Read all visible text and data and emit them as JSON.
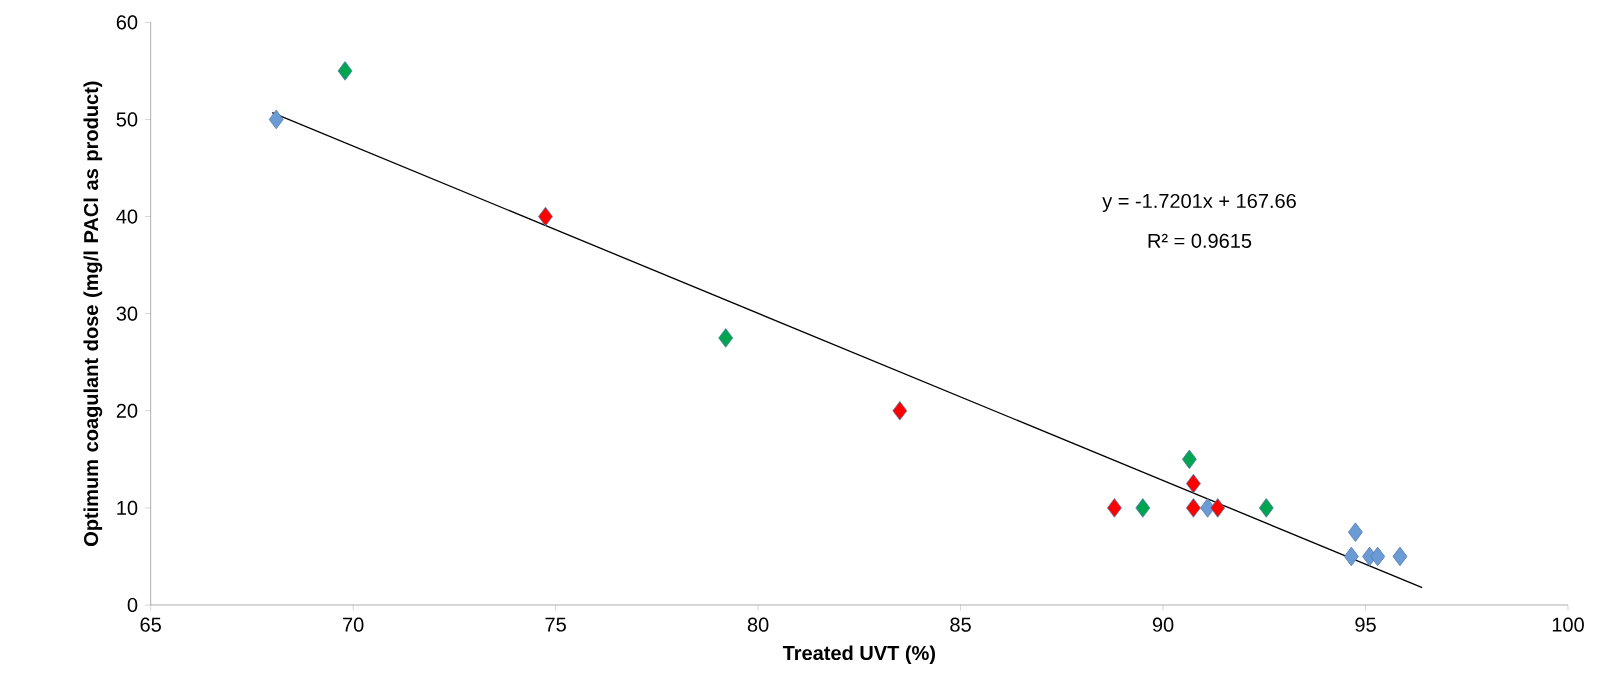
{
  "chart_data": {
    "type": "scatter",
    "xlabel": "Treated UVT (%)",
    "ylabel": "Optimum coagulant dose (mg/l PACl as product)",
    "xlim": [
      65,
      100
    ],
    "ylim": [
      0,
      60
    ],
    "xticks": [
      65,
      70,
      75,
      80,
      85,
      90,
      95,
      100
    ],
    "yticks": [
      0,
      10,
      20,
      30,
      40,
      50,
      60
    ],
    "grid": false,
    "annotations": [
      "y = -1.7201x + 167.66",
      "R² = 0.9615"
    ],
    "series": [
      {
        "marker": "diamond",
        "color": "#6b9bd6",
        "x": [
          68.1,
          91.1,
          94.65,
          94.75,
          95.1,
          95.3,
          95.85
        ],
        "values": [
          50,
          10,
          5,
          7.5,
          5,
          5,
          5
        ]
      },
      {
        "marker": "diamond",
        "color": "#00a550",
        "x": [
          69.8,
          79.2,
          90.65,
          89.5,
          92.55
        ],
        "values": [
          55,
          27.5,
          15,
          10,
          10
        ]
      },
      {
        "marker": "diamond",
        "color": "#ff0000",
        "x": [
          74.75,
          83.5,
          88.8,
          90.75,
          90.75,
          91.35
        ],
        "values": [
          40,
          20,
          10,
          12.5,
          10,
          10
        ]
      },
      {
        "type": "line",
        "color": "#000000",
        "line_style": "solid",
        "x": [
          68,
          96.4
        ],
        "values": [
          50.7,
          1.8
        ]
      }
    ]
  }
}
